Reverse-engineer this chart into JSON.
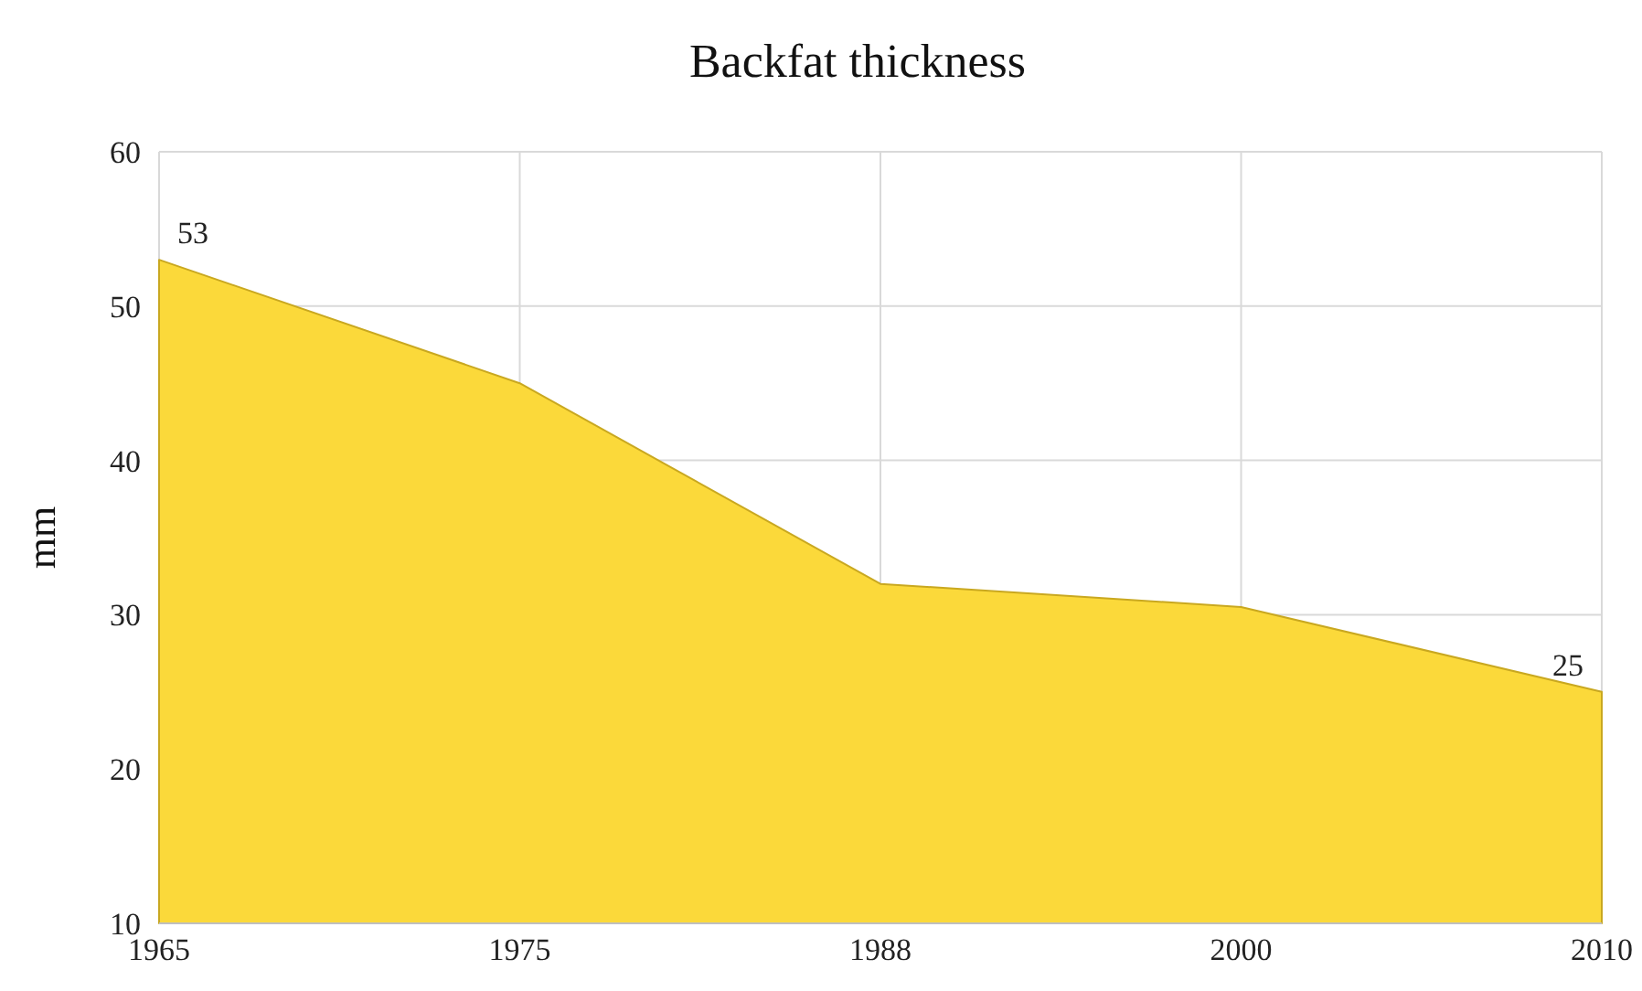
{
  "chart_data": {
    "type": "area",
    "title": "Backfat thickness",
    "ylabel": "mm",
    "categories": [
      "1965",
      "1975",
      "1988",
      "2000",
      "2010"
    ],
    "series": [
      {
        "color": "#fbd93a",
        "values": [
          53,
          45,
          32,
          30.5,
          25
        ],
        "value_labels": [
          "53",
          null,
          null,
          null,
          "25"
        ]
      }
    ],
    "ylim": [
      10,
      60
    ],
    "yticks": [
      10,
      20,
      30,
      40,
      50,
      60
    ],
    "grid": true
  }
}
